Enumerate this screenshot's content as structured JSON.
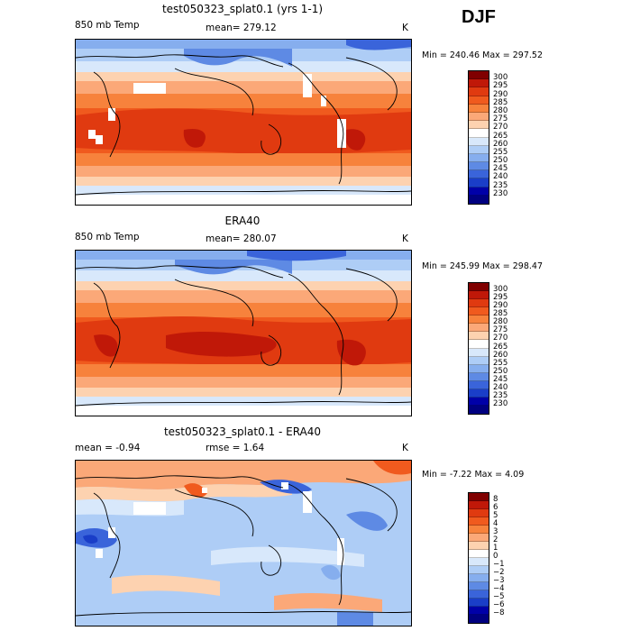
{
  "season": "DJF",
  "panels": [
    {
      "id": "model",
      "title": "test050323_splat0.1 (yrs 1-1)",
      "left_label": "850 mb Temp",
      "center_label": "mean= 279.12",
      "units": "K",
      "minmax": "Min = 240.46 Max = 297.52",
      "colorbar": {
        "labels": [
          "300",
          "295",
          "290",
          "285",
          "280",
          "275",
          "270",
          "265",
          "260",
          "255",
          "250",
          "245",
          "240",
          "235",
          "230"
        ],
        "colors": [
          "#800000",
          "#c01808",
          "#e03a10",
          "#f05a1e",
          "#f7823c",
          "#fba878",
          "#fdd2b0",
          "#ffffff",
          "#d8e8fb",
          "#aecdf6",
          "#86aeee",
          "#5e8ae4",
          "#3a64da",
          "#1a3ec8",
          "#0000a8",
          "#000080"
        ]
      }
    },
    {
      "id": "obs",
      "title": "ERA40",
      "left_label": "850 mb Temp",
      "center_label": "mean= 280.07",
      "units": "K",
      "minmax": "Min = 245.99 Max = 298.47",
      "colorbar": {
        "labels": [
          "300",
          "295",
          "290",
          "285",
          "280",
          "275",
          "270",
          "265",
          "260",
          "255",
          "250",
          "245",
          "240",
          "235",
          "230"
        ],
        "colors": [
          "#800000",
          "#c01808",
          "#e03a10",
          "#f05a1e",
          "#f7823c",
          "#fba878",
          "#fdd2b0",
          "#ffffff",
          "#d8e8fb",
          "#aecdf6",
          "#86aeee",
          "#5e8ae4",
          "#3a64da",
          "#1a3ec8",
          "#0000a8",
          "#000080"
        ]
      }
    },
    {
      "id": "diff",
      "title": "test050323_splat0.1 - ERA40",
      "left_label": "mean =   -0.94",
      "center_label": "rmse =    1.64",
      "units": "K",
      "minmax": "Min =  -7.22 Max =    4.09",
      "colorbar": {
        "labels": [
          "8",
          "6",
          "5",
          "4",
          "3",
          "2",
          "1",
          "0",
          "−1",
          "−2",
          "−3",
          "−4",
          "−5",
          "−6",
          "−8"
        ],
        "colors": [
          "#800000",
          "#c01808",
          "#e03a10",
          "#f05a1e",
          "#f7823c",
          "#fba878",
          "#fdd2b0",
          "#ffffff",
          "#d8e8fb",
          "#aecdf6",
          "#86aeee",
          "#5e8ae4",
          "#3a64da",
          "#1a3ec8",
          "#0000a8",
          "#000080"
        ]
      }
    }
  ]
}
